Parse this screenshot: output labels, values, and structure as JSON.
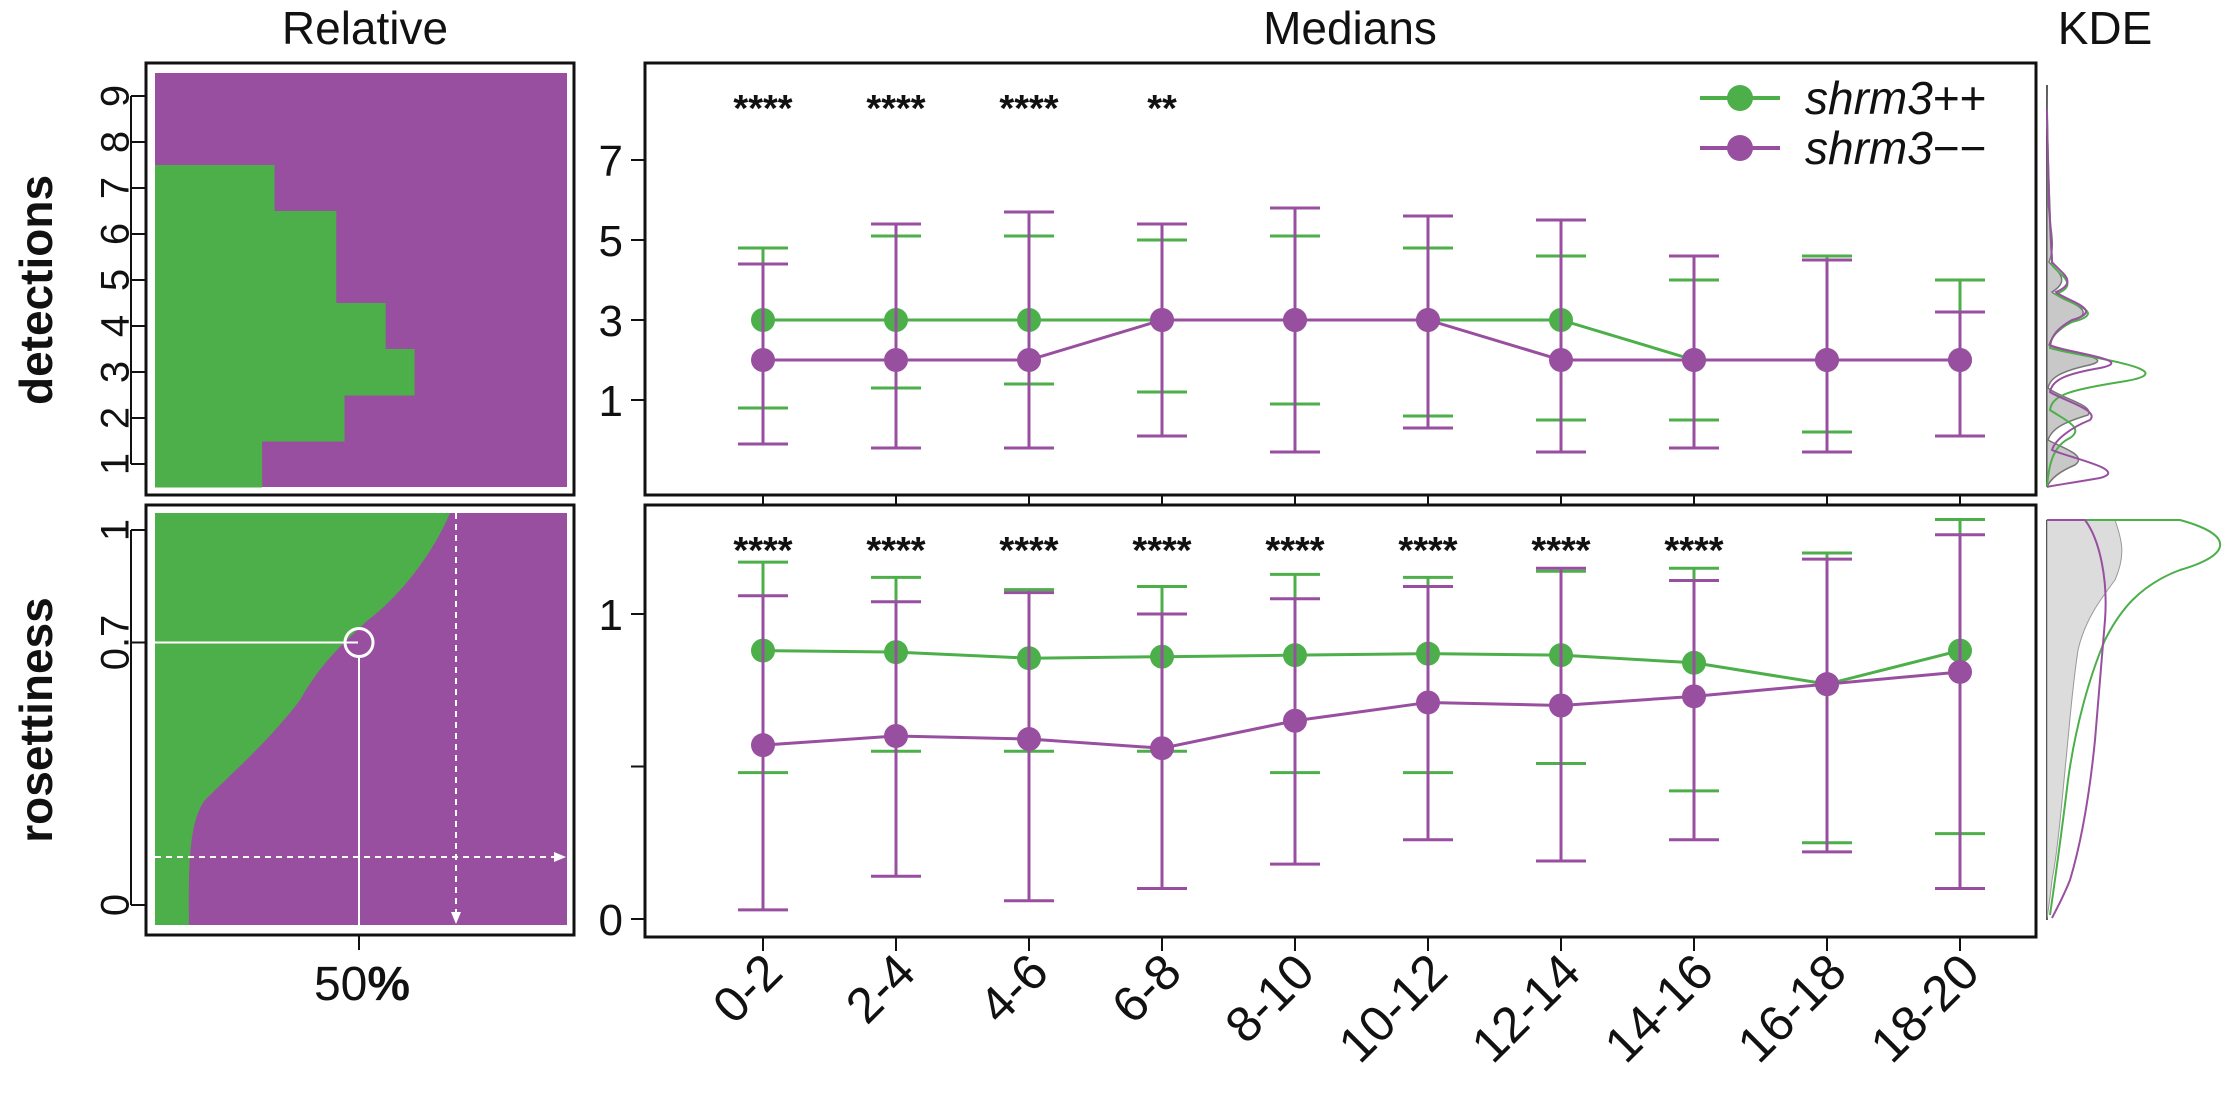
{
  "titles": {
    "relative": "Relative",
    "medians": "Medians",
    "kde": "KDE"
  },
  "row_labels": {
    "detections": "detections",
    "rosettiness": "rosettiness"
  },
  "relative_xlabel": {
    "value": "50",
    "unit": "%"
  },
  "colors": {
    "wt": "#4caf4a",
    "mut": "#994fa0",
    "grey": "#c8c8c8"
  },
  "legend": [
    {
      "italic": "shrm3",
      "suffix": "++",
      "color": "#4caf4a"
    },
    {
      "italic": "shrm3",
      "suffix": "−−",
      "color": "#994fa0"
    }
  ],
  "relative": {
    "detections_ticks": [
      "1",
      "2",
      "3",
      "4",
      "5",
      "6",
      "7",
      "8",
      "9"
    ],
    "detections_green_fraction": [
      0.26,
      0.46,
      0.63,
      0.56,
      0.44,
      0.44,
      0.29,
      0.0,
      0.0
    ],
    "rosettiness_ticks": [
      {
        "label": "0",
        "v": 0
      },
      {
        "label": "0.7",
        "v": 0.7
      },
      {
        "label": "1",
        "v": 1
      }
    ]
  },
  "chart_data": [
    {
      "type": "line",
      "panel": "detections",
      "categories": [
        "0-2",
        "2-4",
        "4-6",
        "6-8",
        "8-10",
        "10-12",
        "12-14",
        "14-16",
        "16-18",
        "18-20"
      ],
      "ylim": [
        -1,
        9
      ],
      "yticks": [
        1,
        3,
        5,
        7
      ],
      "series": [
        {
          "name": "shrm3++",
          "median": [
            3,
            3,
            3,
            3,
            3,
            3,
            3,
            2,
            2,
            2
          ],
          "lower": [
            0.8,
            1.3,
            1.4,
            1.2,
            0.9,
            0.6,
            0.5,
            0.5,
            0.2,
            0.1
          ],
          "upper": [
            4.8,
            5.1,
            5.1,
            5.0,
            5.1,
            4.8,
            4.6,
            4.0,
            4.6,
            4.0
          ]
        },
        {
          "name": "shrm3−−",
          "median": [
            2,
            2,
            2,
            3,
            3,
            3,
            2,
            2,
            2,
            2
          ],
          "lower": [
            -0.1,
            -0.2,
            -0.2,
            0.1,
            -0.3,
            0.3,
            -0.3,
            -0.2,
            -0.3,
            0.1
          ],
          "upper": [
            4.4,
            5.4,
            5.7,
            5.4,
            5.8,
            5.6,
            5.5,
            4.6,
            4.5,
            3.2
          ]
        }
      ],
      "significance": [
        "****",
        "****",
        "****",
        "**",
        "",
        "",
        "",
        "",
        "",
        ""
      ]
    },
    {
      "type": "line",
      "panel": "rosettiness",
      "categories": [
        "0-2",
        "2-4",
        "4-6",
        "6-8",
        "8-10",
        "10-12",
        "12-14",
        "14-16",
        "16-18",
        "18-20"
      ],
      "ylim": [
        -0.05,
        1.36
      ],
      "yticks": [
        0,
        0.5,
        1
      ],
      "ytick_labels": [
        "0",
        "",
        "1"
      ],
      "series": [
        {
          "name": "shrm3++",
          "median": [
            0.88,
            0.875,
            0.855,
            0.86,
            0.865,
            0.87,
            0.865,
            0.84,
            0.77,
            0.88
          ],
          "lower": [
            0.48,
            0.55,
            0.55,
            0.55,
            0.48,
            0.48,
            0.51,
            0.42,
            0.25,
            0.28
          ],
          "upper": [
            1.17,
            1.12,
            1.08,
            1.09,
            1.13,
            1.12,
            1.14,
            1.15,
            1.2,
            1.31
          ]
        },
        {
          "name": "shrm3−−",
          "median": [
            0.57,
            0.6,
            0.59,
            0.56,
            0.65,
            0.71,
            0.7,
            0.73,
            0.77,
            0.81
          ],
          "lower": [
            0.03,
            0.14,
            0.06,
            0.1,
            0.18,
            0.26,
            0.19,
            0.26,
            0.22,
            0.1
          ],
          "upper": [
            1.06,
            1.04,
            1.07,
            1.0,
            1.05,
            1.09,
            1.15,
            1.11,
            1.18,
            1.26
          ]
        }
      ],
      "significance": [
        "****",
        "****",
        "****",
        "****",
        "****",
        "****",
        "****",
        "****",
        "",
        ""
      ]
    }
  ]
}
